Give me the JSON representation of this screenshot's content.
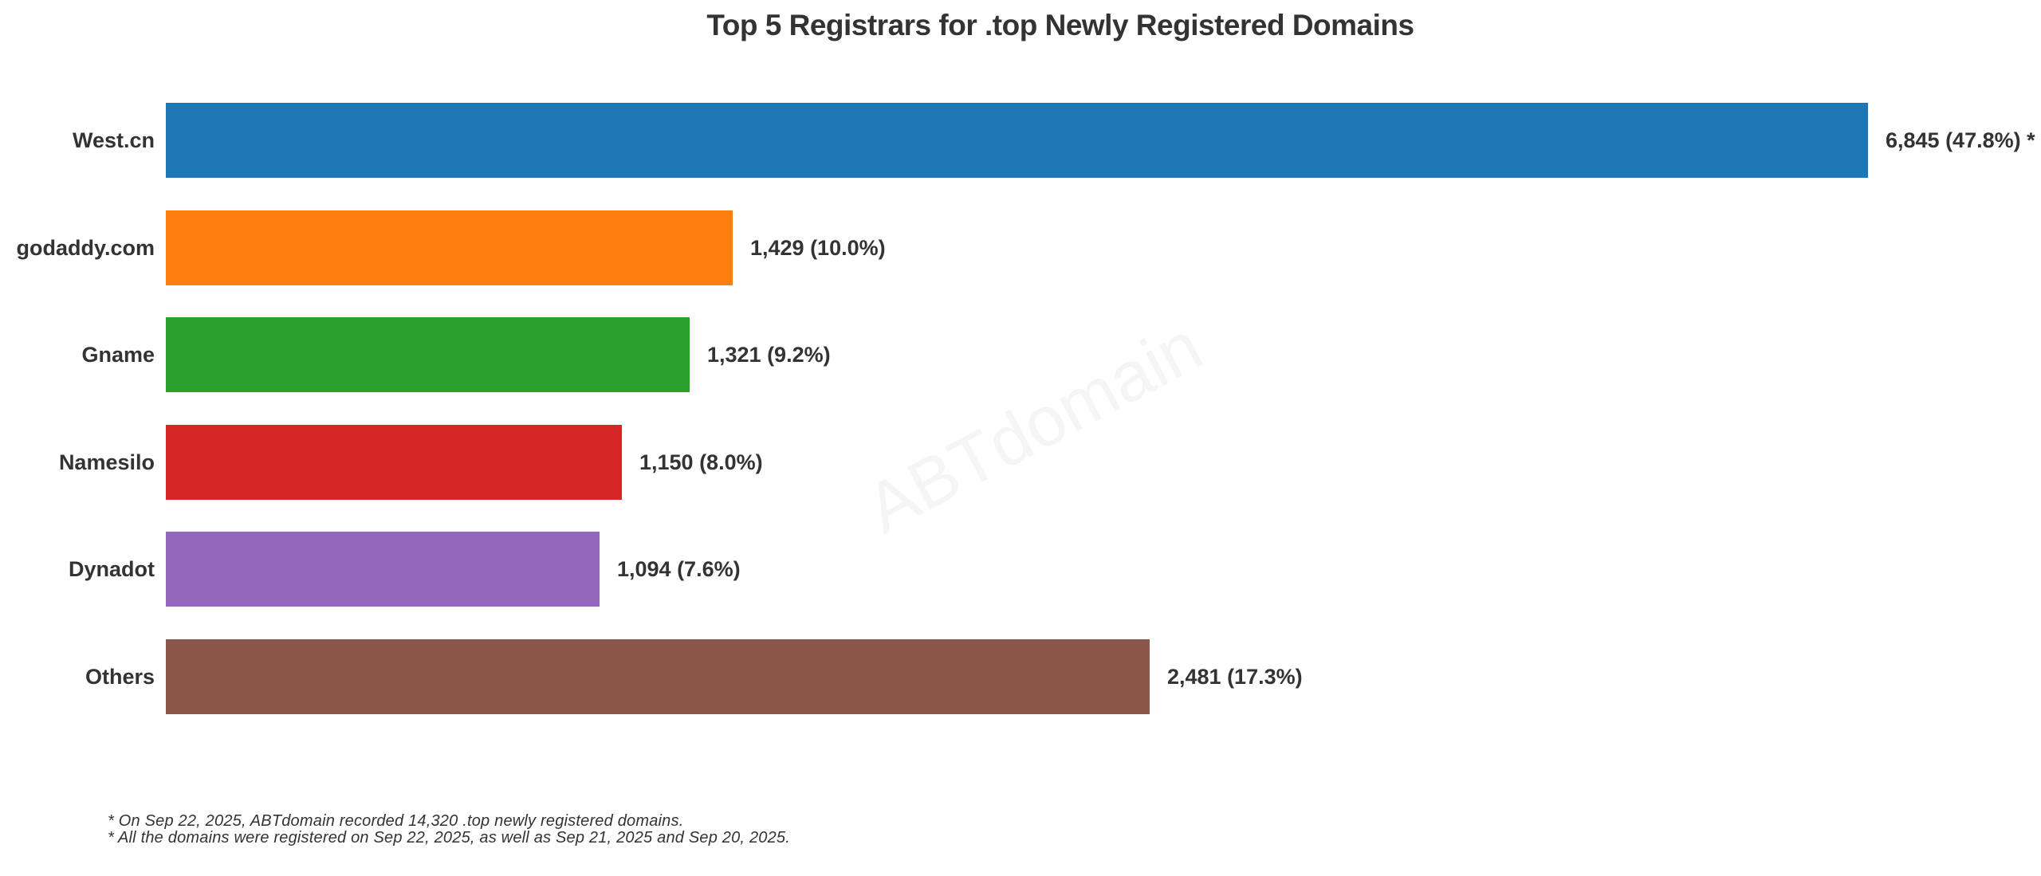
{
  "title": "Top 5 Registrars for .top Newly Registered Domains",
  "watermark_text": "ABTdomain",
  "colors": {
    "text": "#333333",
    "watermark": "#f5f5f5",
    "background": "#ffffff"
  },
  "chart_data": {
    "type": "bar",
    "orientation": "horizontal",
    "title": "Top 5 Registrars for .top Newly Registered Domains",
    "categories": [
      "West.cn",
      "godaddy.com",
      "Gname",
      "Namesilo",
      "Dynadot",
      "Others"
    ],
    "values": [
      6845,
      1429,
      1321,
      1150,
      1094,
      2481
    ],
    "value_labels": [
      "6,845 (47.8%) *",
      "1,429 (10.0%)",
      "1,321 (9.2%)",
      "1,150 (8.0%)",
      "1,094 (7.6%)",
      "2,481 (17.3%)"
    ],
    "percentages": [
      47.8,
      10.0,
      9.2,
      8.0,
      7.6,
      17.3
    ],
    "bar_colors": [
      "#1f77b4",
      "#ff7f0e",
      "#2ca02c",
      "#d62728",
      "#9467bd",
      "#8c564b"
    ],
    "first_bar_clipped": true,
    "grid": false,
    "legend": false,
    "xlabel": "",
    "ylabel": ""
  },
  "footnotes": [
    "* On Sep 22, 2025, ABTdomain recorded 14,320 .top newly registered domains.",
    "* All the domains were registered on Sep 22, 2025, as well as Sep 21, 2025 and Sep 20, 2025."
  ]
}
